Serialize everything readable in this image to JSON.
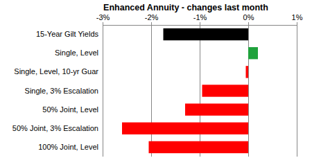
{
  "chart_data": {
    "type": "bar",
    "orientation": "horizontal",
    "title": "Enhanced Annuity - changes last month",
    "categories": [
      "15-Year Gilt Yields",
      "Single, Level",
      "Single, Level, 10-yr Guar",
      "Single, 3% Escalation",
      "50% Joint, Level",
      "50% Joint, 3% Escalation",
      "100% Joint, Level"
    ],
    "values": [
      -1.75,
      0.2,
      -0.05,
      -0.95,
      -1.3,
      -2.6,
      -2.05
    ],
    "colors": [
      "#000000",
      "#1fa23c",
      "#ff0000",
      "#ff0000",
      "#ff0000",
      "#ff0000",
      "#ff0000"
    ],
    "xlim": [
      -3,
      1
    ],
    "xticks": [
      {
        "value": -3,
        "label": "-3%"
      },
      {
        "value": -2,
        "label": "-2%"
      },
      {
        "value": -1,
        "label": "-1%"
      },
      {
        "value": 0,
        "label": "0%"
      },
      {
        "value": 1,
        "label": "1%"
      }
    ],
    "grid": true
  }
}
